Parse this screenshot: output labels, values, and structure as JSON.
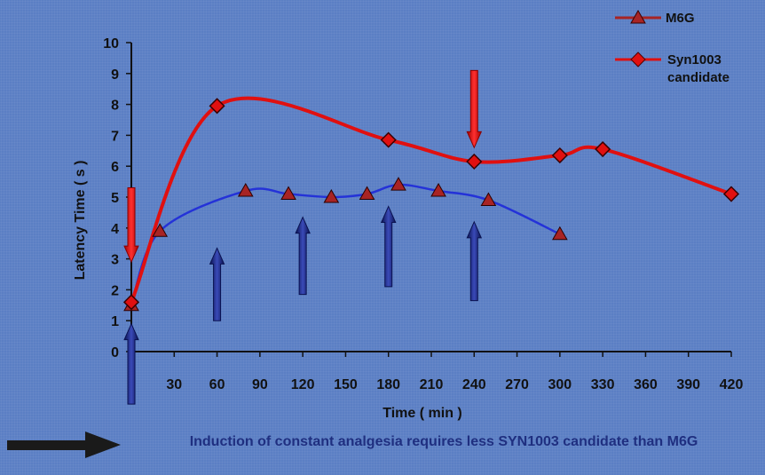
{
  "chart_data": {
    "type": "line",
    "xlabel": "Time ( min )",
    "ylabel": "Latency Time ( s )",
    "xlim": [
      0,
      420
    ],
    "ylim": [
      0,
      10
    ],
    "x_ticks": [
      0,
      30,
      60,
      90,
      120,
      150,
      180,
      210,
      240,
      270,
      300,
      330,
      360,
      390,
      420
    ],
    "y_ticks": [
      0,
      1,
      2,
      3,
      4,
      5,
      6,
      7,
      8,
      9,
      10
    ],
    "legend_position": "top-right",
    "series": [
      {
        "name": "M6G",
        "marker": "triangle",
        "line_color": "#2432d8",
        "marker_color": "#a82424",
        "x": [
          0,
          20,
          80,
          110,
          140,
          165,
          187,
          215,
          250,
          300
        ],
        "y": [
          1.5,
          3.9,
          5.2,
          5.1,
          5.0,
          5.1,
          5.4,
          5.2,
          4.9,
          3.8
        ]
      },
      {
        "name": "Syn1003 candidate",
        "marker": "diamond",
        "line_color": "#e01010",
        "marker_color": "#e01010",
        "x": [
          0,
          60,
          180,
          240,
          300,
          330,
          420
        ],
        "y": [
          1.6,
          7.95,
          6.85,
          6.15,
          6.35,
          6.55,
          5.1
        ]
      }
    ],
    "annotations": {
      "up_arrows": [
        {
          "x": 0,
          "y_from": -1.7,
          "y_to": 0.9
        },
        {
          "x": 60,
          "y_from": 1.0,
          "y_to": 3.35
        },
        {
          "x": 120,
          "y_from": 1.85,
          "y_to": 4.35
        },
        {
          "x": 180,
          "y_from": 2.1,
          "y_to": 4.7
        },
        {
          "x": 240,
          "y_from": 1.65,
          "y_to": 4.2
        }
      ],
      "down_arrows": [
        {
          "x": 0,
          "y_from": 5.3,
          "y_to": 2.9
        },
        {
          "x": 240,
          "y_from": 9.1,
          "y_to": 6.6
        }
      ]
    }
  },
  "caption": {
    "text": "Induction of constant analgesia requires less SYN1003 candidate than M6G"
  },
  "colors": {
    "background": "#5b7fc4",
    "arrow_up": "#14207a",
    "arrow_down": "#e01010",
    "caption_text": "#1f2f80",
    "caption_arrow": "#1a1a1a"
  }
}
